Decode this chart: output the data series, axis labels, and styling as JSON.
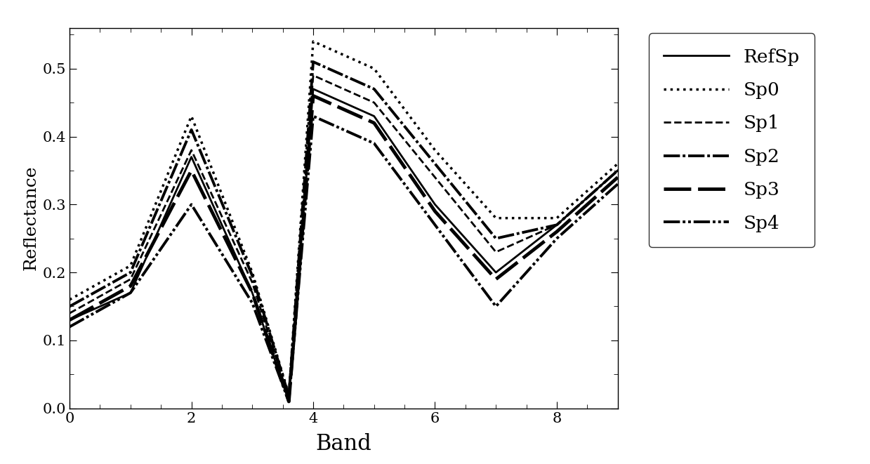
{
  "x": [
    0,
    1,
    2,
    3,
    3.6,
    4,
    5,
    6,
    7,
    8,
    9
  ],
  "RefSp": [
    0.13,
    0.17,
    0.37,
    0.17,
    0.01,
    0.47,
    0.43,
    0.3,
    0.2,
    0.27,
    0.35
  ],
  "Sp0": [
    0.16,
    0.21,
    0.43,
    0.2,
    0.02,
    0.54,
    0.5,
    0.38,
    0.28,
    0.28,
    0.36
  ],
  "Sp1": [
    0.14,
    0.19,
    0.38,
    0.185,
    0.015,
    0.49,
    0.45,
    0.34,
    0.23,
    0.27,
    0.35
  ],
  "Sp2": [
    0.15,
    0.2,
    0.41,
    0.195,
    0.018,
    0.51,
    0.47,
    0.36,
    0.25,
    0.27,
    0.35
  ],
  "Sp3": [
    0.13,
    0.18,
    0.35,
    0.17,
    0.01,
    0.46,
    0.42,
    0.29,
    0.19,
    0.26,
    0.34
  ],
  "Sp4": [
    0.12,
    0.17,
    0.3,
    0.155,
    0.01,
    0.43,
    0.39,
    0.27,
    0.15,
    0.25,
    0.33
  ],
  "xlim": [
    0,
    9
  ],
  "ylim": [
    0.0,
    0.56
  ],
  "xlabel": "Band",
  "ylabel": "Reflectance",
  "xticks": [
    0,
    2,
    4,
    6,
    8
  ],
  "yticks": [
    0.0,
    0.1,
    0.2,
    0.3,
    0.4,
    0.5
  ],
  "background_color": "#ffffff"
}
